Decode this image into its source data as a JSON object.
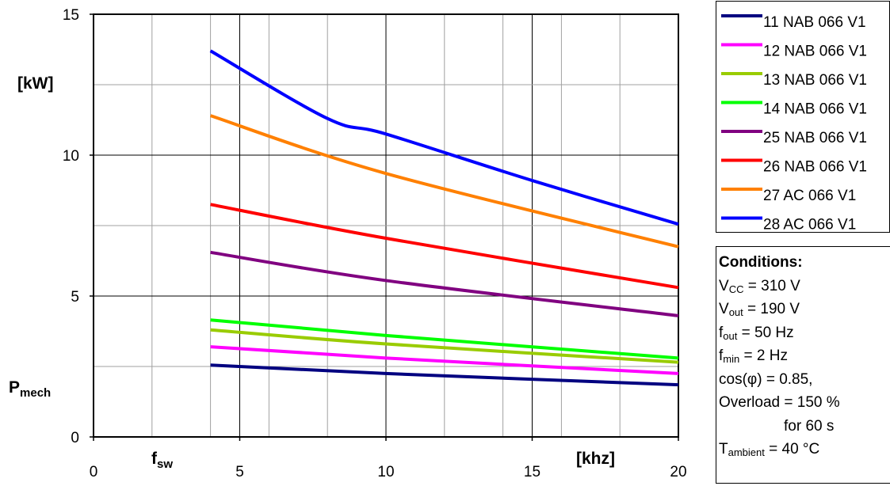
{
  "chart_data": {
    "type": "line",
    "title": "",
    "xlim": [
      0,
      20
    ],
    "ylim": [
      0,
      15
    ],
    "x_ticks": [
      "0",
      "5",
      "10",
      "15",
      "20"
    ],
    "y_ticks": [
      "0",
      "5",
      "10",
      "15"
    ],
    "grid": true,
    "legend_position": "right-top",
    "ylabel_unit": "[kW]",
    "ylabel_main": "P",
    "ylabel_sub": "mech",
    "xlabel_main": "f",
    "xlabel_sub": "sw",
    "xlabel_unit": "[khz]",
    "series": [
      {
        "name": "11 NAB 066 V1",
        "color": "#000080",
        "x": [
          4,
          10,
          20
        ],
        "y": [
          2.55,
          2.25,
          1.85
        ]
      },
      {
        "name": "12 NAB 066 V1",
        "color": "#ff00ff",
        "x": [
          4,
          10,
          20
        ],
        "y": [
          3.2,
          2.8,
          2.25
        ]
      },
      {
        "name": "13 NAB 066 V1",
        "color": "#99cc00",
        "x": [
          4,
          10,
          20
        ],
        "y": [
          3.8,
          3.3,
          2.65
        ]
      },
      {
        "name": "14 NAB 066 V1",
        "color": "#00ff00",
        "x": [
          4,
          10,
          20
        ],
        "y": [
          4.15,
          3.6,
          2.8
        ]
      },
      {
        "name": "25 NAB 066 V1",
        "color": "#800080",
        "x": [
          4,
          10,
          20
        ],
        "y": [
          6.55,
          5.55,
          4.3
        ]
      },
      {
        "name": "26 NAB 066 V1",
        "color": "#ff0000",
        "x": [
          4,
          10,
          20
        ],
        "y": [
          8.25,
          7.05,
          5.3
        ]
      },
      {
        "name": "27 AC 066 V1",
        "color": "#ff8000",
        "x": [
          4,
          10,
          20
        ],
        "y": [
          11.4,
          9.35,
          6.75
        ]
      },
      {
        "name": "28 AC 066 V1",
        "color": "#0000ff",
        "x": [
          4,
          8,
          10,
          15,
          20
        ],
        "y": [
          13.7,
          11.3,
          10.75,
          9.1,
          7.55
        ]
      }
    ]
  },
  "conditions": {
    "title": "Conditions:",
    "vcc_label": "V",
    "vcc_sub": "CC",
    "vcc_value": " = 310 V",
    "vout_label": "V",
    "vout_sub": "out",
    "vout_value": " = 190 V",
    "fout_label": "f",
    "fout_sub": "out",
    "fout_value": " = 50 Hz",
    "fmin_label": "f",
    "fmin_sub": "min",
    "fmin_value": " = 2 Hz",
    "cos": "cos(φ) = 0.85,",
    "overload": "Overload = 150 %",
    "overload_duration": "for 60 s",
    "tamb_label": "T",
    "tamb_sub": "ambient",
    "tamb_value": " = 40 °C"
  }
}
